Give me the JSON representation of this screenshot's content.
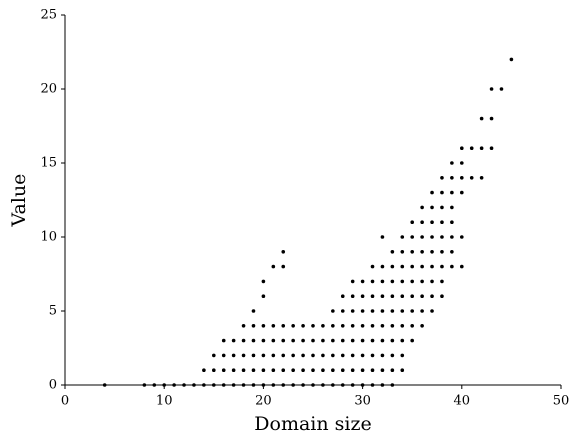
{
  "chart_data": {
    "type": "scatter",
    "xlabel": "Domain size",
    "ylabel": "Value",
    "xlim": [
      0,
      50
    ],
    "ylim": [
      0,
      25
    ],
    "xticks": [
      0,
      10,
      20,
      30,
      40,
      50
    ],
    "yticks": [
      0,
      5,
      10,
      15,
      20,
      25
    ],
    "series": [
      {
        "color": "#000000",
        "x": [
          4,
          8,
          9,
          10,
          11,
          12,
          13,
          14,
          15,
          16,
          17,
          18,
          19,
          20,
          21,
          22,
          23,
          24,
          25,
          26,
          27,
          28,
          29,
          30,
          31,
          32,
          33,
          14,
          15,
          16,
          17,
          18,
          19,
          20,
          21,
          22,
          23,
          24,
          25,
          26,
          27,
          28,
          29,
          30,
          31,
          32,
          33,
          34,
          15,
          16,
          17,
          18,
          19,
          20,
          21,
          22,
          23,
          24,
          25,
          26,
          27,
          28,
          29,
          30,
          31,
          32,
          33,
          34,
          16,
          17,
          18,
          19,
          20,
          21,
          22,
          23,
          24,
          25,
          26,
          27,
          28,
          29,
          30,
          31,
          32,
          33,
          34,
          35,
          18,
          19,
          20,
          21,
          22,
          23,
          24,
          25,
          26,
          27,
          28,
          29,
          30,
          31,
          32,
          33,
          34,
          35,
          36,
          19,
          27,
          28,
          29,
          30,
          31,
          32,
          33,
          34,
          35,
          36,
          37,
          20,
          28,
          29,
          30,
          31,
          32,
          33,
          34,
          35,
          36,
          37,
          38,
          20,
          29,
          30,
          31,
          32,
          33,
          34,
          35,
          36,
          37,
          38,
          21,
          22,
          31,
          32,
          33,
          34,
          35,
          36,
          37,
          38,
          39,
          40,
          22,
          33,
          34,
          35,
          36,
          37,
          38,
          39,
          32,
          34,
          35,
          36,
          37,
          38,
          39,
          40,
          35,
          36,
          37,
          38,
          39,
          36,
          37,
          38,
          39,
          37,
          38,
          39,
          40,
          38,
          39,
          40,
          41,
          42,
          39,
          40,
          40,
          41,
          42,
          43,
          42,
          43,
          43,
          44,
          45
        ],
        "values": [
          0,
          0,
          0,
          0,
          0,
          0,
          0,
          0,
          0,
          0,
          0,
          0,
          0,
          0,
          0,
          0,
          0,
          0,
          0,
          0,
          0,
          0,
          0,
          0,
          0,
          0,
          0,
          1,
          1,
          1,
          1,
          1,
          1,
          1,
          1,
          1,
          1,
          1,
          1,
          1,
          1,
          1,
          1,
          1,
          1,
          1,
          1,
          1,
          2,
          2,
          2,
          2,
          2,
          2,
          2,
          2,
          2,
          2,
          2,
          2,
          2,
          2,
          2,
          2,
          2,
          2,
          2,
          2,
          3,
          3,
          3,
          3,
          3,
          3,
          3,
          3,
          3,
          3,
          3,
          3,
          3,
          3,
          3,
          3,
          3,
          3,
          3,
          3,
          4,
          4,
          4,
          4,
          4,
          4,
          4,
          4,
          4,
          4,
          4,
          4,
          4,
          4,
          4,
          4,
          4,
          4,
          4,
          5,
          5,
          5,
          5,
          5,
          5,
          5,
          5,
          5,
          5,
          5,
          5,
          6,
          6,
          6,
          6,
          6,
          6,
          6,
          6,
          6,
          6,
          6,
          6,
          7,
          7,
          7,
          7,
          7,
          7,
          7,
          7,
          7,
          7,
          7,
          8,
          8,
          8,
          8,
          8,
          8,
          8,
          8,
          8,
          8,
          8,
          8,
          9,
          9,
          9,
          9,
          9,
          9,
          9,
          9,
          10,
          10,
          10,
          10,
          10,
          10,
          10,
          10,
          11,
          11,
          11,
          11,
          11,
          12,
          12,
          12,
          12,
          13,
          13,
          13,
          13,
          14,
          14,
          14,
          14,
          14,
          15,
          15,
          16,
          16,
          16,
          16,
          18,
          18,
          20,
          20,
          22
        ]
      }
    ]
  }
}
